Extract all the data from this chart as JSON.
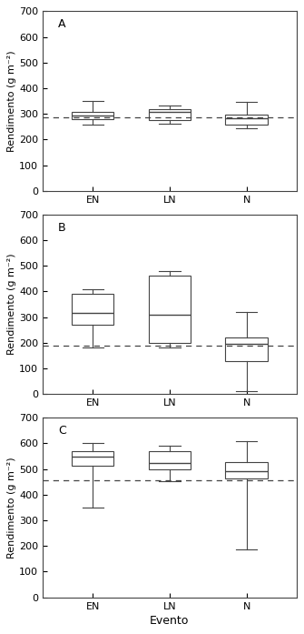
{
  "panels": [
    {
      "label": "A",
      "dashed_line": 285,
      "ylim": [
        0,
        700
      ],
      "yticks": [
        0,
        100,
        200,
        300,
        400,
        500,
        600,
        700
      ],
      "ylabel": "Rendimento (g m⁻²)",
      "xlabel": "",
      "boxes": [
        {
          "category": "EN",
          "whislo": 258,
          "q1": 278,
          "med": 292,
          "q3": 308,
          "whishi": 352
        },
        {
          "category": "LN",
          "whislo": 262,
          "q1": 277,
          "med": 308,
          "q3": 320,
          "whishi": 333
        },
        {
          "category": "N",
          "whislo": 243,
          "q1": 258,
          "med": 283,
          "q3": 298,
          "whishi": 348
        }
      ]
    },
    {
      "label": "B",
      "dashed_line": 190,
      "ylim": [
        0,
        700
      ],
      "yticks": [
        0,
        100,
        200,
        300,
        400,
        500,
        600,
        700
      ],
      "ylabel": "Rendimento (g m⁻²)",
      "xlabel": "",
      "boxes": [
        {
          "category": "EN",
          "whislo": 182,
          "q1": 270,
          "med": 318,
          "q3": 392,
          "whishi": 408
        },
        {
          "category": "LN",
          "whislo": 182,
          "q1": 200,
          "med": 308,
          "q3": 460,
          "whishi": 480
        },
        {
          "category": "N",
          "whislo": 12,
          "q1": 128,
          "med": 195,
          "q3": 222,
          "whishi": 320
        }
      ]
    },
    {
      "label": "C",
      "dashed_line": 455,
      "ylim": [
        0,
        700
      ],
      "yticks": [
        0,
        100,
        200,
        300,
        400,
        500,
        600,
        700
      ],
      "ylabel": "Rendimento (g m⁻²)",
      "xlabel": "Evento",
      "boxes": [
        {
          "category": "EN",
          "whislo": 350,
          "q1": 512,
          "med": 548,
          "q3": 568,
          "whishi": 602
        },
        {
          "category": "LN",
          "whislo": 452,
          "q1": 500,
          "med": 523,
          "q3": 568,
          "whishi": 590
        },
        {
          "category": "N",
          "whislo": 188,
          "q1": 462,
          "med": 490,
          "q3": 528,
          "whishi": 608
        }
      ]
    }
  ],
  "categories": [
    "EN",
    "LN",
    "N"
  ],
  "box_color": "#ffffff",
  "median_color": "#444444",
  "whisker_color": "#444444",
  "box_edge_color": "#444444",
  "dashed_color": "#444444",
  "background_color": "#ffffff",
  "font_size": 8,
  "label_font_size": 9,
  "tick_font_size": 8
}
